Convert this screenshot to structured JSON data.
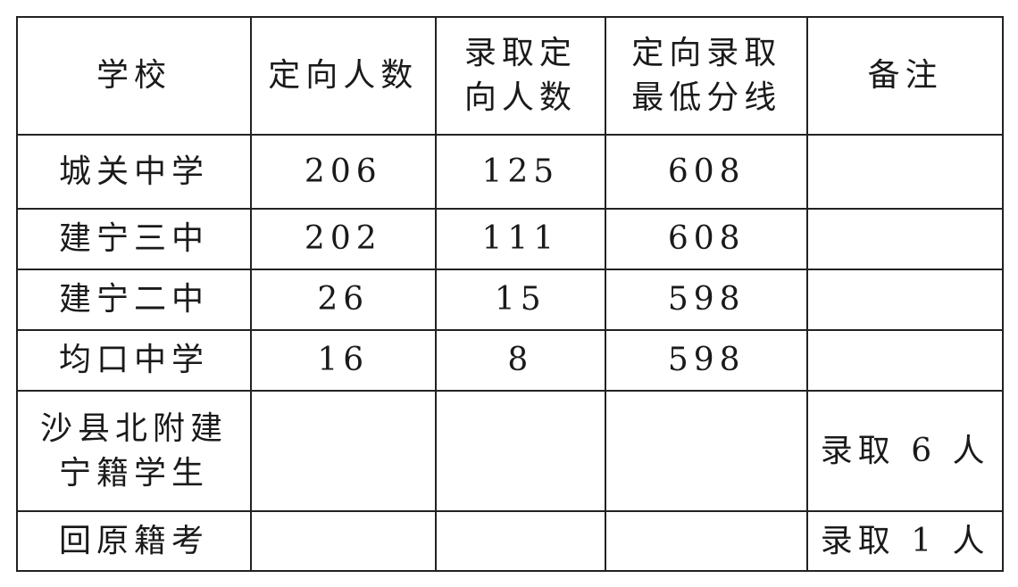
{
  "table": {
    "headers": [
      "学校",
      "定向人数",
      "录取定\n向人数",
      "定向录取\n最低分线",
      "备注"
    ],
    "rows": [
      [
        "城关中学",
        "206",
        "125",
        "608",
        ""
      ],
      [
        "建宁三中",
        "202",
        "111",
        "608",
        ""
      ],
      [
        "建宁二中",
        "26",
        "15",
        "598",
        ""
      ],
      [
        "均口中学",
        "16",
        "8",
        "598",
        ""
      ],
      [
        "沙县北附建\n宁籍学生",
        "",
        "",
        "",
        "录取 6 人"
      ],
      [
        "回原籍考",
        "",
        "",
        "",
        "录取 1 人"
      ]
    ]
  }
}
